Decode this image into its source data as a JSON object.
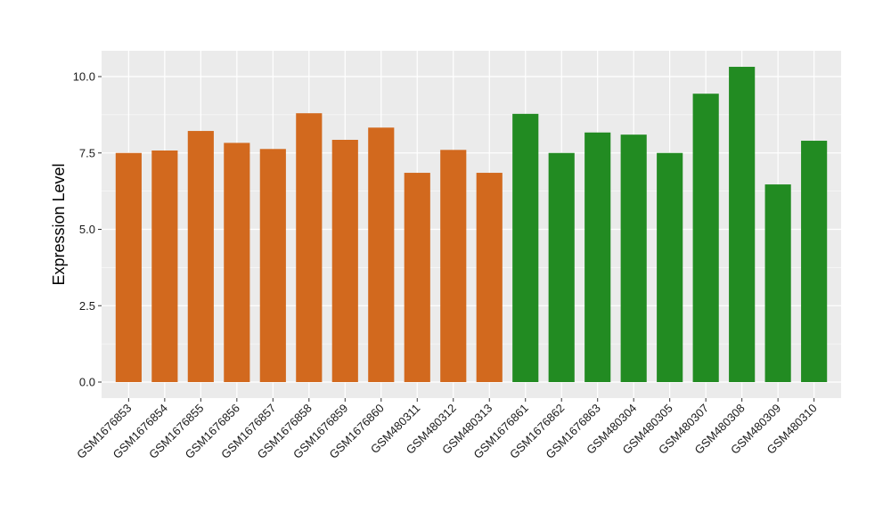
{
  "chart_data": {
    "type": "bar",
    "ylabel": "Expression Level",
    "xlabel": "",
    "ylim": [
      0,
      10.75
    ],
    "yticks": [
      0.0,
      2.5,
      5.0,
      7.5,
      10.0
    ],
    "ytick_labels": [
      "0.0",
      "2.5",
      "5.0",
      "7.5",
      "10.0"
    ],
    "grid": true,
    "categories": [
      "GSM1676853",
      "GSM1676854",
      "GSM1676855",
      "GSM1676856",
      "GSM1676857",
      "GSM1676858",
      "GSM1676859",
      "GSM1676860",
      "GSM480311",
      "GSM480312",
      "GSM480313",
      "GSM1676861",
      "GSM1676862",
      "GSM1676863",
      "GSM480304",
      "GSM480305",
      "GSM480307",
      "GSM480308",
      "GSM480309",
      "GSM480310"
    ],
    "values": [
      7.5,
      7.58,
      8.22,
      7.83,
      7.63,
      8.8,
      7.93,
      8.33,
      6.85,
      7.6,
      6.85,
      8.78,
      7.5,
      8.17,
      8.1,
      7.5,
      9.44,
      10.32,
      6.47,
      7.9
    ],
    "bar_colors": [
      "#d2691e",
      "#d2691e",
      "#d2691e",
      "#d2691e",
      "#d2691e",
      "#d2691e",
      "#d2691e",
      "#d2691e",
      "#d2691e",
      "#d2691e",
      "#d2691e",
      "#228b22",
      "#228b22",
      "#228b22",
      "#228b22",
      "#228b22",
      "#228b22",
      "#228b22",
      "#228b22",
      "#228b22"
    ],
    "panel_background": "#ebebeb",
    "grid_color": "#ffffff"
  }
}
